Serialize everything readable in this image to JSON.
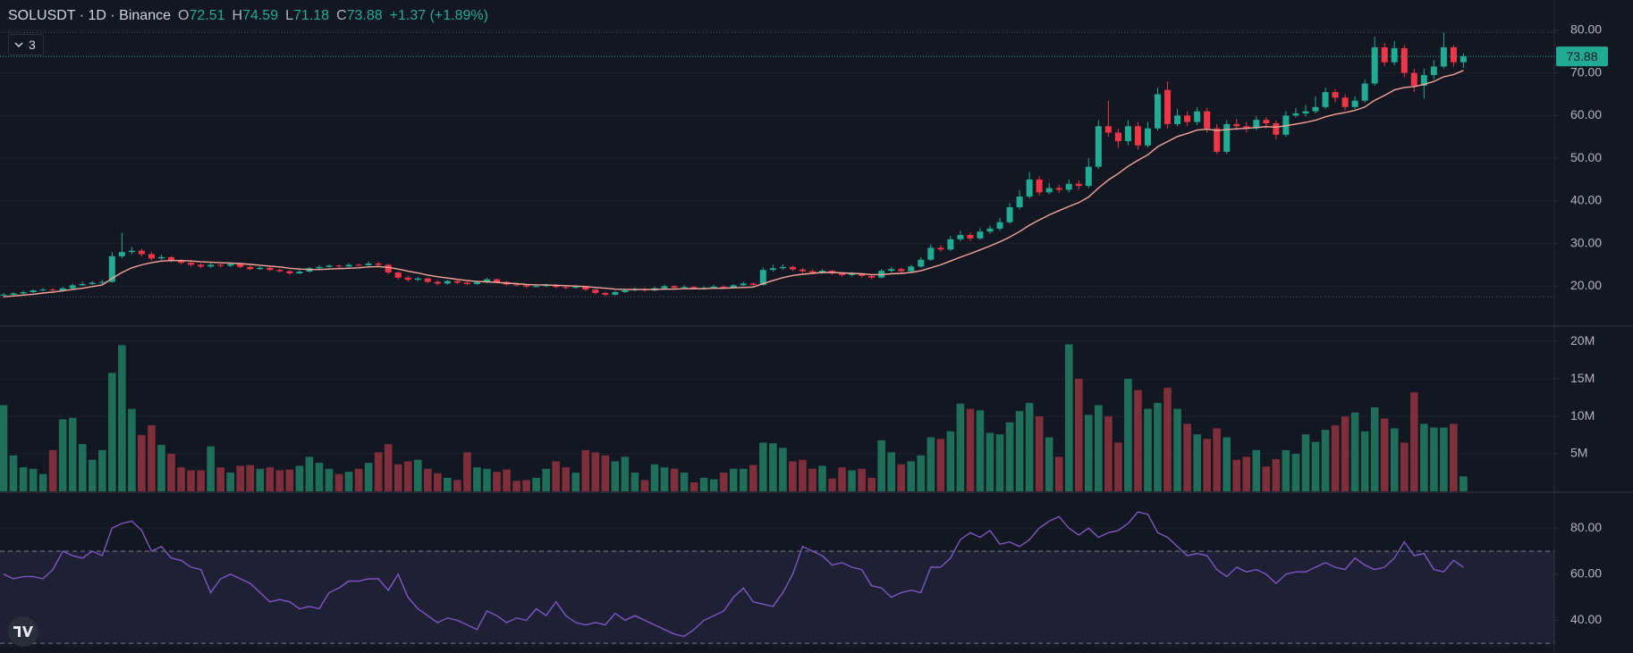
{
  "header": {
    "title": "SOLUSDT · 1D · Binance",
    "ohlc": [
      {
        "label": "O",
        "value": "72.51"
      },
      {
        "label": "H",
        "value": "74.59"
      },
      {
        "label": "L",
        "value": "71.18"
      },
      {
        "label": "C",
        "value": "73.88"
      }
    ],
    "change": "+1.37 (+1.89%)",
    "indicators": "3"
  },
  "chart_data": [
    {
      "type": "candlestick",
      "up_color": "#22ab94",
      "down_color": "#f23645",
      "ylim": [
        10.85,
        87.1
      ],
      "yticks": [
        {
          "value": 20,
          "label": "20.00"
        },
        {
          "value": 30,
          "label": "30.00"
        },
        {
          "value": 40,
          "label": "40.00"
        },
        {
          "value": 50,
          "label": "50.00"
        },
        {
          "value": 60,
          "label": "60.00"
        },
        {
          "value": 70,
          "label": "70.00"
        },
        {
          "value": 80,
          "label": "80.00"
        }
      ],
      "open": [
        17.8,
        18.0,
        18.3,
        18.6,
        19.0,
        19.2,
        19.0,
        19.5,
        20.2,
        20.5,
        20.8,
        21.0,
        27.0,
        28.0,
        28.3,
        27.5,
        26.5,
        26.8,
        26.0,
        25.5,
        25.0,
        24.6,
        25.0,
        24.8,
        25.2,
        24.5,
        24.0,
        24.3,
        23.8,
        23.5,
        23.0,
        23.4,
        24.2,
        24.5,
        24.8,
        24.6,
        25.0,
        24.9,
        25.3,
        25.0,
        23.2,
        22.0,
        21.5,
        21.8,
        21.0,
        20.6,
        21.2,
        20.8,
        20.5,
        20.9,
        21.6,
        21.0,
        20.4,
        20.2,
        19.9,
        20.0,
        20.3,
        19.8,
        19.6,
        19.8,
        19.2,
        18.4,
        18.0,
        18.6,
        19.0,
        19.3,
        19.0,
        19.5,
        20.0,
        19.6,
        19.8,
        19.5,
        19.6,
        19.9,
        19.7,
        20.2,
        20.6,
        20.3,
        23.8,
        24.2,
        24.5,
        23.9,
        23.5,
        23.2,
        23.6,
        23.0,
        22.6,
        22.9,
        22.4,
        22.0,
        23.6,
        24.0,
        23.5,
        24.6,
        26.2,
        29.0,
        28.6,
        31.0,
        32.0,
        31.2,
        32.8,
        33.5,
        35.0,
        38.5,
        41.0,
        45.0,
        42.0,
        43.0,
        42.6,
        44.0,
        43.5,
        48.0,
        57.5,
        56.0,
        54.0,
        57.5,
        53.0,
        57.0,
        66.0,
        58.0,
        60.0,
        58.5,
        61.0,
        57.0,
        51.5,
        58.0,
        57.5,
        57.0,
        59.0,
        58.2,
        55.5,
        60.0,
        60.5,
        61.0,
        62.0,
        65.5,
        64.2,
        62.0,
        63.5,
        67.5,
        76.0,
        72.5,
        75.8,
        70.0,
        67.0,
        69.5,
        71.5,
        76.0,
        72.51
      ],
      "high": [
        18.4,
        18.6,
        18.9,
        19.3,
        19.6,
        19.5,
        19.8,
        20.6,
        21.0,
        21.2,
        21.5,
        28.0,
        32.5,
        29.2,
        28.8,
        28.0,
        27.4,
        27.0,
        26.3,
        25.8,
        25.3,
        25.4,
        25.3,
        25.6,
        25.5,
        24.8,
        24.7,
        24.6,
        24.1,
        23.8,
        23.8,
        24.5,
        24.9,
        25.1,
        25.1,
        25.4,
        25.3,
        25.8,
        25.7,
        25.2,
        23.5,
        22.4,
        22.2,
        22.0,
        21.3,
        21.5,
        21.4,
        21.1,
        21.3,
        22.0,
        21.8,
        21.2,
        20.7,
        20.5,
        20.4,
        20.6,
        20.5,
        20.1,
        20.2,
        20.0,
        19.4,
        18.7,
        18.9,
        19.4,
        19.7,
        19.6,
        19.9,
        20.4,
        20.2,
        20.2,
        20.0,
        20.0,
        20.3,
        20.2,
        20.5,
        21.0,
        20.9,
        24.4,
        25.0,
        25.1,
        24.8,
        24.2,
        23.9,
        24.0,
        23.8,
        23.3,
        23.3,
        23.1,
        22.7,
        24.0,
        24.5,
        24.3,
        25.0,
        26.8,
        29.8,
        29.6,
        31.8,
        33.0,
        32.6,
        33.6,
        34.2,
        36.0,
        39.5,
        42.5,
        46.8,
        45.8,
        44.2,
        43.8,
        45.0,
        44.8,
        50.0,
        59.0,
        63.5,
        57.0,
        59.0,
        58.5,
        58.5,
        66.5,
        68.0,
        61.5,
        61.0,
        62.0,
        61.8,
        58.0,
        59.0,
        59.2,
        58.5,
        59.8,
        59.6,
        58.8,
        61.0,
        61.8,
        62.5,
        64.5,
        66.5,
        66.2,
        65.0,
        64.5,
        68.5,
        78.5,
        77.0,
        77.5,
        76.5,
        71.0,
        71.0,
        73.0,
        79.5,
        76.5,
        74.59
      ],
      "low": [
        17.5,
        17.8,
        18.1,
        18.4,
        18.8,
        18.7,
        18.8,
        19.3,
        20.0,
        20.3,
        20.5,
        20.8,
        26.5,
        27.5,
        27.0,
        26.0,
        26.2,
        25.6,
        25.1,
        24.6,
        24.2,
        24.3,
        24.4,
        24.5,
        24.2,
        23.7,
        23.8,
        23.5,
        23.2,
        22.7,
        22.8,
        23.2,
        24.0,
        24.3,
        24.3,
        24.4,
        24.6,
        24.7,
        24.6,
        22.8,
        21.6,
        21.1,
        21.2,
        20.7,
        20.2,
        20.4,
        20.5,
        20.2,
        20.3,
        20.7,
        20.7,
        20.1,
        19.9,
        19.6,
        19.7,
        19.8,
        19.5,
        19.3,
        19.4,
        18.9,
        18.0,
        17.6,
        17.8,
        18.4,
        18.8,
        18.7,
        18.8,
        19.3,
        19.3,
        19.4,
        19.2,
        19.2,
        19.4,
        19.4,
        19.5,
        20.0,
        20.0,
        20.1,
        23.4,
        23.8,
        23.5,
        23.1,
        22.8,
        22.9,
        22.6,
        22.2,
        22.3,
        22.0,
        21.6,
        21.8,
        23.2,
        23.1,
        23.3,
        24.3,
        25.9,
        28.0,
        28.3,
        30.5,
        30.6,
        30.9,
        32.3,
        33.0,
        34.6,
        38.0,
        40.5,
        41.2,
        41.5,
        41.8,
        42.0,
        42.6,
        43.0,
        47.5,
        55.0,
        52.5,
        53.0,
        52.0,
        52.5,
        56.5,
        57.0,
        57.5,
        57.5,
        57.8,
        56.0,
        51.0,
        51.0,
        56.5,
        56.0,
        56.5,
        57.0,
        54.5,
        55.0,
        59.5,
        59.8,
        60.5,
        61.5,
        63.0,
        61.2,
        61.5,
        63.0,
        67.0,
        71.5,
        71.8,
        69.0,
        65.5,
        64.0,
        68.5,
        71.0,
        71.5,
        71.18
      ],
      "close": [
        18.0,
        18.3,
        18.6,
        19.0,
        19.2,
        19.0,
        19.5,
        20.2,
        20.5,
        20.8,
        21.0,
        27.0,
        28.0,
        28.3,
        27.5,
        26.5,
        26.8,
        26.0,
        25.5,
        25.0,
        24.6,
        25.0,
        24.8,
        25.2,
        24.5,
        24.0,
        24.3,
        23.8,
        23.5,
        23.0,
        23.4,
        24.2,
        24.5,
        24.8,
        24.6,
        25.0,
        24.9,
        25.3,
        25.0,
        23.2,
        22.0,
        21.5,
        21.8,
        21.0,
        20.6,
        21.2,
        20.8,
        20.5,
        20.9,
        21.6,
        21.0,
        20.4,
        20.2,
        19.9,
        20.0,
        20.3,
        19.8,
        19.6,
        19.8,
        19.2,
        18.4,
        18.0,
        18.6,
        19.0,
        19.3,
        19.0,
        19.5,
        20.0,
        19.6,
        19.8,
        19.5,
        19.6,
        19.9,
        19.7,
        20.2,
        20.6,
        20.3,
        23.8,
        24.2,
        24.5,
        23.9,
        23.5,
        23.2,
        23.6,
        23.0,
        22.6,
        22.9,
        22.4,
        22.0,
        23.6,
        24.0,
        23.5,
        24.6,
        26.2,
        29.0,
        28.6,
        31.0,
        32.0,
        31.2,
        32.8,
        33.5,
        35.0,
        38.5,
        41.0,
        45.0,
        42.0,
        43.0,
        42.6,
        44.0,
        43.5,
        48.0,
        57.5,
        56.0,
        54.0,
        57.5,
        53.0,
        57.0,
        65.0,
        58.0,
        60.0,
        58.5,
        61.0,
        57.0,
        51.5,
        58.0,
        57.5,
        57.0,
        59.0,
        58.2,
        55.5,
        60.0,
        60.5,
        61.0,
        62.0,
        65.5,
        64.2,
        62.0,
        63.5,
        67.5,
        76.0,
        72.5,
        75.8,
        70.0,
        67.0,
        69.5,
        71.5,
        76.0,
        72.51,
        73.88
      ],
      "ma": {
        "color": "#f4a59b",
        "values": [
          17.5,
          17.7,
          17.9,
          18.1,
          18.4,
          18.6,
          18.9,
          19.2,
          19.5,
          19.9,
          20.3,
          21.8,
          23.2,
          24.3,
          25.0,
          25.5,
          25.9,
          26.0,
          26.0,
          25.9,
          25.7,
          25.6,
          25.5,
          25.4,
          25.3,
          25.1,
          24.9,
          24.7,
          24.5,
          24.2,
          24.0,
          23.9,
          23.9,
          24.0,
          24.1,
          24.2,
          24.3,
          24.5,
          24.6,
          24.4,
          24.0,
          23.5,
          23.1,
          22.6,
          22.2,
          21.9,
          21.6,
          21.3,
          21.1,
          21.0,
          20.9,
          20.7,
          20.6,
          20.4,
          20.3,
          20.3,
          20.2,
          20.1,
          20.0,
          19.9,
          19.7,
          19.5,
          19.3,
          19.2,
          19.2,
          19.2,
          19.2,
          19.3,
          19.3,
          19.4,
          19.4,
          19.4,
          19.5,
          19.5,
          19.6,
          19.7,
          19.8,
          20.6,
          21.3,
          22.0,
          22.5,
          22.8,
          23.0,
          23.2,
          23.2,
          23.1,
          23.0,
          22.9,
          22.7,
          22.7,
          22.9,
          23.0,
          23.2,
          23.6,
          24.3,
          25.0,
          25.9,
          26.8,
          27.6,
          28.5,
          29.4,
          30.4,
          31.5,
          32.8,
          34.3,
          35.5,
          36.7,
          37.7,
          38.7,
          39.6,
          40.9,
          43.0,
          44.9,
          46.4,
          48.1,
          49.5,
          50.8,
          52.7,
          53.9,
          55.1,
          55.8,
          56.6,
          56.8,
          56.5,
          56.7,
          56.9,
          57.0,
          57.2,
          57.4,
          57.3,
          57.6,
          58.0,
          58.4,
          58.9,
          59.7,
          60.3,
          60.7,
          61.2,
          62.0,
          63.6,
          64.7,
          66.0,
          66.6,
          66.8,
          67.3,
          68.0,
          69.1,
          69.6,
          70.6
        ]
      }
    },
    {
      "type": "bar",
      "up_color": "#1f6e5a",
      "down_color": "#7e2f3b",
      "ylim": [
        0,
        21.8
      ],
      "yticks": [
        {
          "value": 5,
          "label": "5M"
        },
        {
          "value": 10,
          "label": "10M"
        },
        {
          "value": 15,
          "label": "15M"
        },
        {
          "value": 20,
          "label": "20M"
        }
      ],
      "values": [
        11.5,
        4.8,
        3.2,
        3.0,
        2.3,
        5.5,
        9.6,
        9.8,
        6.3,
        4.2,
        5.5,
        15.8,
        19.5,
        11.0,
        7.5,
        8.8,
        6.2,
        5.0,
        3.2,
        2.8,
        2.8,
        6.0,
        3.2,
        2.5,
        3.4,
        3.5,
        3.0,
        3.2,
        2.8,
        2.9,
        3.4,
        4.6,
        3.8,
        3.0,
        2.3,
        2.6,
        3.0,
        3.8,
        5.2,
        6.3,
        3.6,
        4.0,
        4.2,
        3.0,
        2.4,
        1.8,
        1.5,
        5.2,
        3.2,
        3.0,
        2.6,
        2.9,
        1.4,
        1.5,
        1.8,
        3.0,
        4.0,
        3.2,
        2.5,
        5.5,
        5.2,
        4.8,
        4.0,
        4.6,
        2.5,
        1.5,
        3.6,
        3.2,
        3.0,
        2.5,
        1.2,
        1.8,
        1.6,
        2.5,
        3.0,
        3.0,
        3.5,
        6.5,
        6.4,
        5.8,
        4.0,
        4.2,
        3.0,
        3.4,
        1.7,
        3.2,
        2.8,
        3.0,
        1.8,
        6.8,
        5.2,
        3.6,
        4.0,
        4.8,
        7.2,
        7.0,
        8.0,
        11.7,
        11.0,
        10.8,
        7.8,
        7.6,
        9.2,
        10.7,
        11.8,
        10.0,
        7.2,
        4.6,
        19.6,
        15.0,
        10.2,
        11.5,
        10.0,
        6.5,
        15.0,
        13.5,
        11.0,
        11.8,
        13.8,
        11.0,
        9.0,
        7.6,
        7.0,
        8.4,
        7.2,
        4.2,
        4.6,
        5.5,
        3.3,
        4.3,
        5.5,
        5.0,
        7.6,
        6.6,
        8.2,
        8.8,
        10.0,
        10.5,
        8.0,
        11.2,
        9.7,
        8.4,
        6.5,
        13.2,
        9.0,
        8.5,
        8.5,
        9.0,
        2.0
      ]
    },
    {
      "type": "line",
      "color": "#7e57c2",
      "band_color": "rgba(126,87,194,0.12)",
      "levels": [
        70,
        30
      ],
      "ylim": [
        25.8,
        94.8
      ],
      "yticks": [
        {
          "value": 40,
          "label": "40.00"
        },
        {
          "value": 60,
          "label": "60.00"
        },
        {
          "value": 80,
          "label": "80.00"
        }
      ],
      "values": [
        60,
        58,
        59,
        59,
        58,
        62,
        70,
        68,
        67,
        70,
        68,
        80,
        82,
        83,
        79,
        70,
        72,
        67,
        66,
        63,
        62,
        52,
        58,
        60,
        58,
        56,
        52,
        48,
        49,
        48,
        45,
        46,
        45,
        52,
        54,
        57,
        57,
        58,
        58,
        53,
        60,
        50,
        45,
        42,
        39,
        41,
        40,
        38,
        36,
        44,
        42,
        39,
        41,
        40,
        45,
        42,
        48,
        42,
        39,
        38,
        39,
        38,
        43,
        40,
        42,
        40,
        38,
        36,
        34,
        33,
        36,
        40,
        42,
        44,
        50,
        54,
        48,
        47,
        46,
        52,
        60,
        72,
        70,
        68,
        64,
        65,
        63,
        62,
        55,
        54,
        50,
        52,
        53,
        52,
        63,
        63,
        67,
        75,
        78,
        76,
        79,
        73,
        74,
        72,
        75,
        80,
        83,
        85,
        80,
        77,
        80,
        76,
        78,
        79,
        82,
        87,
        86,
        78,
        76,
        72,
        68,
        69,
        68,
        62,
        59,
        63,
        61,
        62,
        60,
        56,
        60,
        61,
        61,
        63,
        65,
        63,
        62,
        67,
        64,
        62,
        63,
        67,
        74,
        68,
        69,
        62,
        61,
        66,
        63
      ]
    }
  ]
}
